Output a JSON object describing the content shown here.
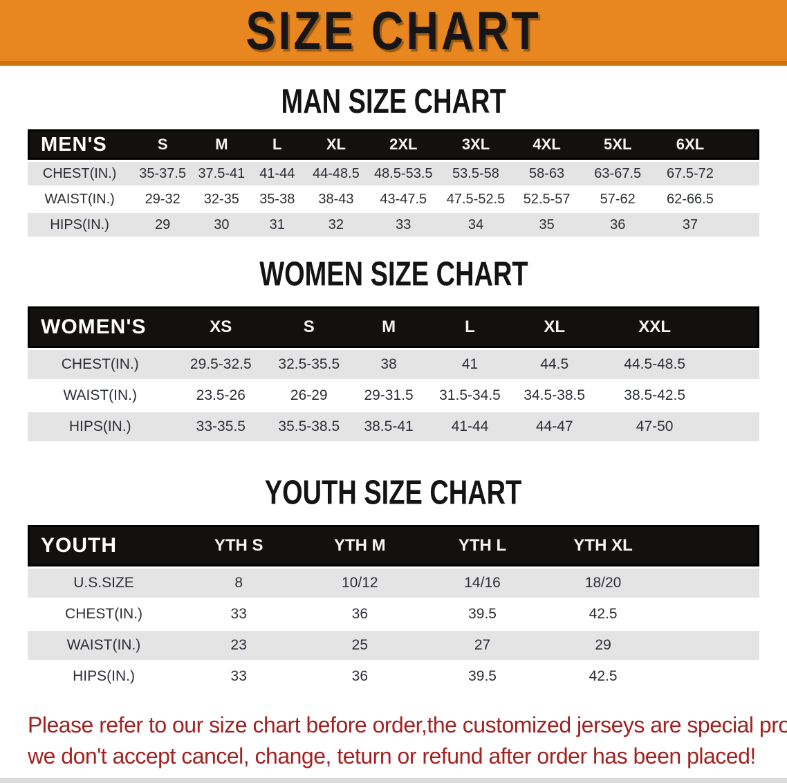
{
  "banner": {
    "title": "SIZE CHART",
    "bg_color": "#E8871F",
    "edge_color": "#D0700F"
  },
  "sections": [
    {
      "id": "men",
      "heading": "MAN SIZE CHART",
      "header_label": "MEN'S",
      "columns": [
        "S",
        "M",
        "L",
        "XL",
        "2XL",
        "3XL",
        "4XL",
        "5XL",
        "6XL"
      ],
      "col_widths": [
        "14.2%",
        "8.5%",
        "7.6%",
        "7.6%",
        "8.5%",
        "9.9%",
        "9.9%",
        "9.5%",
        "9.9%",
        "9.9%",
        "4.5%"
      ],
      "rows": [
        {
          "label": "CHEST(IN.)",
          "values": [
            "35-37.5",
            "37.5-41",
            "41-44",
            "44-48.5",
            "48.5-53.5",
            "53.5-58",
            "58-63",
            "63-67.5",
            "67.5-72"
          ]
        },
        {
          "label": "WAIST(IN.)",
          "values": [
            "29-32",
            "32-35",
            "35-38",
            "38-43",
            "43-47.5",
            "47.5-52.5",
            "52.5-57",
            "57-62",
            "62-66.5"
          ]
        },
        {
          "label": "HIPS(IN.)",
          "values": [
            "29",
            "30",
            "31",
            "32",
            "33",
            "34",
            "35",
            "36",
            "37"
          ]
        }
      ]
    },
    {
      "id": "women",
      "heading": "WOMEN SIZE CHART",
      "header_label": "WOMEN'S",
      "columns": [
        "XS",
        "S",
        "M",
        "L",
        "XL",
        "XXL"
      ],
      "col_widths": [
        "19.8%",
        "13.2%",
        "10.9%",
        "10.9%",
        "11.3%",
        "11.8%",
        "15.6%",
        "6.5%"
      ],
      "rows": [
        {
          "label": "CHEST(IN.)",
          "values": [
            "29.5-32.5",
            "32.5-35.5",
            "38",
            "41",
            "44.5",
            "44.5-48.5"
          ]
        },
        {
          "label": "WAIST(IN.)",
          "values": [
            "23.5-26",
            "26-29",
            "29-31.5",
            "31.5-34.5",
            "34.5-38.5",
            "38.5-42.5"
          ]
        },
        {
          "label": "HIPS(IN.)",
          "values": [
            "33-35.5",
            "35.5-38.5",
            "38.5-41",
            "41-44",
            "44-47",
            "47-50"
          ]
        }
      ]
    },
    {
      "id": "youth",
      "heading": "YOUTH SIZE CHART",
      "header_label": "YOUTH",
      "columns": [
        "YTH S",
        "YTH M",
        "YTH L",
        "YTH XL"
      ],
      "col_widths": [
        "20.8%",
        "16.1%",
        "17%",
        "16.5%",
        "16.5%",
        "13.1%"
      ],
      "rows": [
        {
          "label": "U.S.SIZE",
          "values": [
            "8",
            "10/12",
            "14/16",
            "18/20"
          ]
        },
        {
          "label": "CHEST(IN.)",
          "values": [
            "33",
            "36",
            "39.5",
            "42.5"
          ]
        },
        {
          "label": "WAIST(IN.)",
          "values": [
            "23",
            "25",
            "27",
            "29"
          ]
        },
        {
          "label": "HIPS(IN.)",
          "values": [
            "33",
            "36",
            "39.5",
            "42.5"
          ]
        }
      ]
    }
  ],
  "disclaimer": {
    "color": "#A32120",
    "line1": "Please refer to our size chart before order,the customized jerseys are special products,",
    "line2": "we don't accept cancel, change, teturn or refund after order has been placed!"
  }
}
